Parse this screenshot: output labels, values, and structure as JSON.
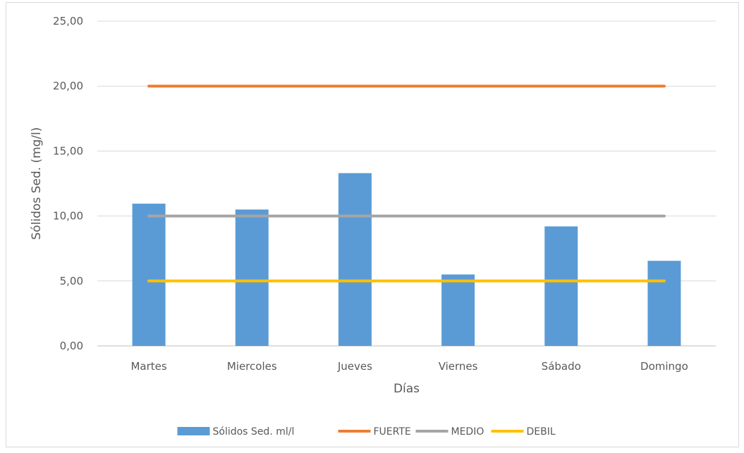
{
  "chart_data": {
    "type": "bar",
    "title": "",
    "xlabel": "Días",
    "ylabel": "Sólidos  Sed. (mg/l)",
    "ylim": [
      0,
      25
    ],
    "y_ticks": [
      "0,00",
      "5,00",
      "10,00",
      "15,00",
      "20,00",
      "25,00"
    ],
    "y_tick_values": [
      0,
      5,
      10,
      15,
      20,
      25
    ],
    "grid": true,
    "legend_position": "bottom",
    "categories": [
      "Martes",
      "Miercoles",
      "Jueves",
      "Viernes",
      "Sábado",
      "Domingo"
    ],
    "series": [
      {
        "name": "Sólidos Sed. ml/l",
        "kind": "bar",
        "color": "#5b9bd5",
        "values": [
          10.95,
          10.5,
          13.3,
          5.5,
          9.2,
          6.55
        ]
      },
      {
        "name": "FUERTE",
        "kind": "line",
        "color": "#ed7d31",
        "values": [
          20,
          20,
          20,
          20,
          20,
          20
        ]
      },
      {
        "name": "MEDIO",
        "kind": "line",
        "color": "#a5a5a5",
        "values": [
          10,
          10,
          10,
          10,
          10,
          10
        ]
      },
      {
        "name": "DEBIL",
        "kind": "line",
        "color": "#ffc000",
        "values": [
          5,
          5,
          5,
          5,
          5,
          5
        ]
      }
    ]
  }
}
